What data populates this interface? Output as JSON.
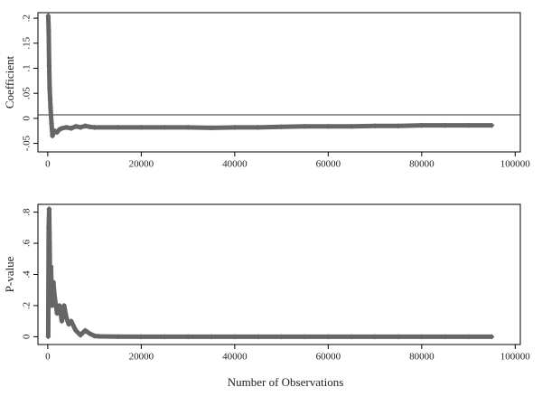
{
  "chart_data": [
    {
      "type": "line",
      "y_label": "Coefficient",
      "color": "#666666",
      "markers": true,
      "hline": 0.007,
      "x": [
        100,
        200,
        300,
        400,
        500,
        600,
        800,
        1000,
        1200,
        1500,
        2000,
        2500,
        3000,
        4000,
        5000,
        6000,
        7000,
        8000,
        9000,
        10000,
        15000,
        20000,
        25000,
        30000,
        35000,
        40000,
        45000,
        50000,
        55000,
        60000,
        65000,
        70000,
        75000,
        80000,
        85000,
        90000,
        95000
      ],
      "values": [
        0.205,
        0.175,
        0.105,
        0.06,
        0.04,
        0.02,
        -0.01,
        -0.035,
        -0.03,
        -0.025,
        -0.028,
        -0.022,
        -0.02,
        -0.018,
        -0.02,
        -0.016,
        -0.018,
        -0.015,
        -0.017,
        -0.018,
        -0.018,
        -0.018,
        -0.018,
        -0.018,
        -0.019,
        -0.018,
        -0.018,
        -0.017,
        -0.016,
        -0.016,
        -0.016,
        -0.015,
        -0.015,
        -0.014,
        -0.014,
        -0.014,
        -0.014
      ],
      "xlim": [
        -2100,
        101100
      ],
      "xticks": [
        0,
        20000,
        40000,
        60000,
        80000,
        100000
      ],
      "ylim": [
        -0.067,
        0.211
      ],
      "yticks": [
        {
          "value": -0.05,
          "label": "-.05"
        },
        0,
        {
          "value": 0.05,
          "label": ".05"
        },
        {
          "value": 0.1,
          "label": ".1"
        },
        {
          "value": 0.15,
          "label": ".15"
        },
        {
          "value": 0.2,
          "label": ".2"
        }
      ]
    },
    {
      "type": "line",
      "y_label": "P-value",
      "x_label": "Number of Observations",
      "color": "#666666",
      "markers": true,
      "x": [
        100,
        200,
        300,
        400,
        500,
        700,
        900,
        1200,
        1500,
        2000,
        2500,
        3000,
        3500,
        4000,
        4500,
        5000,
        6000,
        7000,
        8000,
        9000,
        10000,
        11000,
        15000,
        20000,
        25000,
        30000,
        35000,
        40000,
        45000,
        50000,
        55000,
        60000,
        65000,
        70000,
        75000,
        80000,
        85000,
        90000,
        95000
      ],
      "values": [
        0.0,
        0.7,
        0.82,
        0.6,
        0.3,
        0.45,
        0.2,
        0.35,
        0.25,
        0.15,
        0.2,
        0.1,
        0.2,
        0.12,
        0.08,
        0.1,
        0.04,
        0.01,
        0.04,
        0.02,
        0.005,
        0.002,
        0.001,
        0,
        0,
        0,
        0,
        0,
        0,
        0,
        0,
        0,
        0,
        0,
        0,
        0,
        0,
        0,
        0
      ],
      "xlim": [
        -2100,
        101100
      ],
      "xticks": [
        0,
        20000,
        40000,
        60000,
        80000,
        100000
      ],
      "ylim": [
        -0.05,
        0.85
      ],
      "yticks": [
        0,
        {
          "value": 0.2,
          "label": ".2"
        },
        {
          "value": 0.4,
          "label": ".4"
        },
        {
          "value": 0.6,
          "label": ".6"
        },
        {
          "value": 0.8,
          "label": ".8"
        }
      ]
    }
  ]
}
